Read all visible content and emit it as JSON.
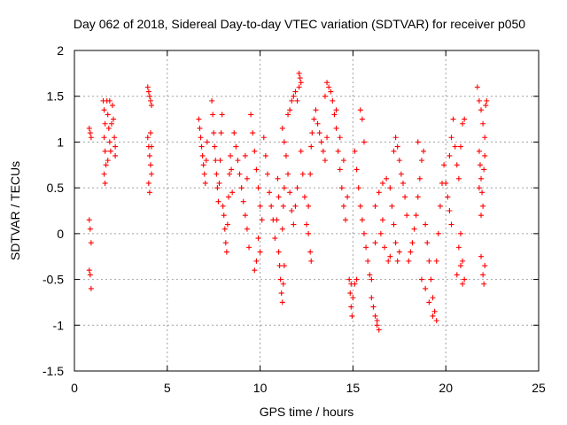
{
  "chart_data": {
    "type": "scatter",
    "title": "Day 062 of 2018, Sidereal Day-to-day VTEC variation (SDTVAR) for receiver p050",
    "xlabel": "GPS time / hours",
    "ylabel": "SDTVAR / TECUs",
    "xlim": [
      0,
      25
    ],
    "ylim": [
      -1.5,
      2
    ],
    "xticks": [
      "0",
      "5",
      "10",
      "15",
      "20",
      "25"
    ],
    "yticks": [
      "-1.5",
      "-1",
      "-0.5",
      "0",
      "0.5",
      "1",
      "1.5",
      "2"
    ],
    "grid": true,
    "marker": "+",
    "color": "#ff0000",
    "series": [
      {
        "name": "p050",
        "points": [
          [
            0.8,
            1.15
          ],
          [
            0.85,
            1.1
          ],
          [
            0.9,
            1.05
          ],
          [
            0.8,
            0.15
          ],
          [
            0.85,
            0.05
          ],
          [
            0.9,
            -0.1
          ],
          [
            0.8,
            -0.4
          ],
          [
            0.85,
            -0.45
          ],
          [
            0.9,
            -0.6
          ],
          [
            1.55,
            1.45
          ],
          [
            1.6,
            1.35
          ],
          [
            1.65,
            1.2
          ],
          [
            1.6,
            1.05
          ],
          [
            1.65,
            0.9
          ],
          [
            1.7,
            0.75
          ],
          [
            1.6,
            0.65
          ],
          [
            1.65,
            0.55
          ],
          [
            1.75,
            1.45
          ],
          [
            1.8,
            1.3
          ],
          [
            1.85,
            1.15
          ],
          [
            1.9,
            1.0
          ],
          [
            1.95,
            0.9
          ],
          [
            2.0,
            1.2
          ],
          [
            2.05,
            1.4
          ],
          [
            2.1,
            1.25
          ],
          [
            2.15,
            1.05
          ],
          [
            2.2,
            0.95
          ],
          [
            2.2,
            0.85
          ],
          [
            1.8,
            0.8
          ],
          [
            1.9,
            1.45
          ],
          [
            3.95,
            1.6
          ],
          [
            4.0,
            1.55
          ],
          [
            4.05,
            1.5
          ],
          [
            4.1,
            1.45
          ],
          [
            4.15,
            1.4
          ],
          [
            3.95,
            1.05
          ],
          [
            4.0,
            0.95
          ],
          [
            4.05,
            0.85
          ],
          [
            4.1,
            0.75
          ],
          [
            4.15,
            0.65
          ],
          [
            4.0,
            0.55
          ],
          [
            4.05,
            0.45
          ],
          [
            4.1,
            1.1
          ],
          [
            4.15,
            0.95
          ],
          [
            6.7,
            1.25
          ],
          [
            6.75,
            1.15
          ],
          [
            6.8,
            1.05
          ],
          [
            6.85,
            0.95
          ],
          [
            6.9,
            0.85
          ],
          [
            6.95,
            0.75
          ],
          [
            7.0,
            0.65
          ],
          [
            7.05,
            0.55
          ],
          [
            7.1,
            0.8
          ],
          [
            7.15,
            1.0
          ],
          [
            7.4,
            1.45
          ],
          [
            7.45,
            1.3
          ],
          [
            7.5,
            1.1
          ],
          [
            7.55,
            0.95
          ],
          [
            7.6,
            0.8
          ],
          [
            7.65,
            0.65
          ],
          [
            7.7,
            0.5
          ],
          [
            7.75,
            0.35
          ],
          [
            7.8,
            0.55
          ],
          [
            7.85,
            0.8
          ],
          [
            7.9,
            1.1
          ],
          [
            7.95,
            1.3
          ],
          [
            8.0,
            0.3
          ],
          [
            8.05,
            0.2
          ],
          [
            8.1,
            0.05
          ],
          [
            8.15,
            -0.1
          ],
          [
            8.2,
            -0.2
          ],
          [
            8.25,
            0.1
          ],
          [
            8.3,
            0.4
          ],
          [
            8.35,
            0.65
          ],
          [
            8.4,
            0.85
          ],
          [
            8.45,
            0.7
          ],
          [
            8.5,
            0.45
          ],
          [
            8.6,
            1.1
          ],
          [
            8.7,
            0.95
          ],
          [
            8.8,
            0.8
          ],
          [
            8.9,
            0.65
          ],
          [
            9.0,
            0.5
          ],
          [
            9.1,
            0.35
          ],
          [
            9.2,
            0.2
          ],
          [
            9.3,
            0.05
          ],
          [
            9.4,
            -0.15
          ],
          [
            9.3,
            0.6
          ],
          [
            9.2,
            0.85
          ],
          [
            9.5,
            1.3
          ],
          [
            9.6,
            1.1
          ],
          [
            9.7,
            0.9
          ],
          [
            9.8,
            0.7
          ],
          [
            9.9,
            0.5
          ],
          [
            10.0,
            0.3
          ],
          [
            10.1,
            0.15
          ],
          [
            9.9,
            -0.05
          ],
          [
            10.0,
            -0.2
          ],
          [
            9.8,
            -0.3
          ],
          [
            9.7,
            -0.4
          ],
          [
            10.2,
            1.05
          ],
          [
            10.3,
            0.85
          ],
          [
            10.4,
            0.65
          ],
          [
            10.5,
            0.45
          ],
          [
            10.6,
            0.3
          ],
          [
            10.7,
            0.15
          ],
          [
            10.8,
            -0.05
          ],
          [
            10.9,
            0.15
          ],
          [
            11.0,
            0.4
          ],
          [
            10.95,
            0.6
          ],
          [
            11.0,
            -0.2
          ],
          [
            11.05,
            -0.35
          ],
          [
            11.1,
            -0.5
          ],
          [
            11.15,
            -0.65
          ],
          [
            11.2,
            -0.75
          ],
          [
            11.25,
            -0.55
          ],
          [
            11.3,
            -0.35
          ],
          [
            11.2,
            0.05
          ],
          [
            11.25,
            0.3
          ],
          [
            11.3,
            0.5
          ],
          [
            11.2,
            1.15
          ],
          [
            11.3,
            1.0
          ],
          [
            11.4,
            0.85
          ],
          [
            11.5,
            0.65
          ],
          [
            11.6,
            0.45
          ],
          [
            11.7,
            0.25
          ],
          [
            11.8,
            0.1
          ],
          [
            11.9,
            0.3
          ],
          [
            12.0,
            0.5
          ],
          [
            11.6,
            1.35
          ],
          [
            11.7,
            1.45
          ],
          [
            11.8,
            1.5
          ],
          [
            11.9,
            1.55
          ],
          [
            12.0,
            1.45
          ],
          [
            12.1,
            1.6
          ],
          [
            11.5,
            1.3
          ],
          [
            12.2,
            0.9
          ],
          [
            12.3,
            0.65
          ],
          [
            12.4,
            0.4
          ],
          [
            12.5,
            0.1
          ],
          [
            12.6,
            0.0
          ],
          [
            12.7,
            -0.2
          ],
          [
            12.75,
            -0.3
          ],
          [
            12.6,
            0.3
          ],
          [
            12.7,
            0.65
          ],
          [
            12.75,
            0.95
          ],
          [
            12.1,
            1.75
          ],
          [
            12.15,
            1.7
          ],
          [
            12.2,
            1.65
          ],
          [
            12.8,
            1.1
          ],
          [
            12.9,
            1.25
          ],
          [
            13.0,
            1.35
          ],
          [
            13.1,
            1.2
          ],
          [
            13.2,
            1.1
          ],
          [
            13.3,
            1.0
          ],
          [
            13.4,
            0.9
          ],
          [
            13.5,
            0.8
          ],
          [
            13.6,
            1.05
          ],
          [
            13.5,
            1.5
          ],
          [
            13.6,
            1.65
          ],
          [
            13.7,
            1.6
          ],
          [
            13.8,
            1.55
          ],
          [
            13.9,
            1.45
          ],
          [
            14.0,
            1.3
          ],
          [
            14.1,
            1.15
          ],
          [
            14.2,
            0.9
          ],
          [
            14.3,
            0.7
          ],
          [
            14.4,
            0.5
          ],
          [
            14.5,
            0.3
          ],
          [
            14.6,
            0.15
          ],
          [
            14.7,
            0.4
          ],
          [
            14.5,
            0.8
          ],
          [
            14.3,
            1.05
          ],
          [
            14.1,
            1.35
          ],
          [
            14.8,
            -0.5
          ],
          [
            14.85,
            -0.65
          ],
          [
            14.9,
            -0.8
          ],
          [
            14.95,
            -0.9
          ],
          [
            15.0,
            -0.7
          ],
          [
            15.1,
            -0.55
          ],
          [
            15.2,
            -0.5
          ],
          [
            14.9,
            -0.55
          ],
          [
            15.1,
            0.9
          ],
          [
            15.2,
            0.7
          ],
          [
            15.3,
            0.5
          ],
          [
            15.4,
            0.3
          ],
          [
            15.5,
            0.15
          ],
          [
            15.6,
            0.0
          ],
          [
            15.7,
            -0.15
          ],
          [
            15.8,
            -0.3
          ],
          [
            15.9,
            -0.45
          ],
          [
            15.6,
            1.0
          ],
          [
            15.5,
            1.25
          ],
          [
            15.4,
            1.35
          ],
          [
            16.0,
            -0.7
          ],
          [
            16.1,
            -0.8
          ],
          [
            16.2,
            -0.9
          ],
          [
            16.3,
            -1.0
          ],
          [
            16.4,
            -1.05
          ],
          [
            16.3,
            -0.95
          ],
          [
            16.0,
            -0.5
          ],
          [
            16.2,
            0.3
          ],
          [
            16.4,
            0.45
          ],
          [
            16.6,
            0.55
          ],
          [
            16.8,
            0.6
          ],
          [
            17.0,
            0.5
          ],
          [
            17.1,
            0.3
          ],
          [
            17.2,
            0.1
          ],
          [
            17.3,
            -0.1
          ],
          [
            17.4,
            -0.3
          ],
          [
            17.5,
            -0.2
          ],
          [
            16.5,
            0.0
          ],
          [
            16.7,
            -0.15
          ],
          [
            16.9,
            -0.3
          ],
          [
            17.0,
            -0.25
          ],
          [
            16.6,
            0.15
          ],
          [
            16.2,
            -0.1
          ],
          [
            17.2,
            0.9
          ],
          [
            17.3,
            1.05
          ],
          [
            17.4,
            0.95
          ],
          [
            17.5,
            0.8
          ],
          [
            17.6,
            0.65
          ],
          [
            17.7,
            0.55
          ],
          [
            17.8,
            0.4
          ],
          [
            17.9,
            0.2
          ],
          [
            18.0,
            -0.3
          ],
          [
            18.1,
            -0.2
          ],
          [
            18.2,
            -0.1
          ],
          [
            18.3,
            0.05
          ],
          [
            18.4,
            0.2
          ],
          [
            18.5,
            0.4
          ],
          [
            18.6,
            0.6
          ],
          [
            18.7,
            0.8
          ],
          [
            18.8,
            0.9
          ],
          [
            18.5,
            1.0
          ],
          [
            18.9,
            0.1
          ],
          [
            19.0,
            -0.1
          ],
          [
            19.1,
            -0.3
          ],
          [
            19.2,
            -0.5
          ],
          [
            19.3,
            -0.7
          ],
          [
            19.4,
            -0.85
          ],
          [
            19.5,
            -0.95
          ],
          [
            19.3,
            -0.9
          ],
          [
            19.1,
            -0.75
          ],
          [
            18.9,
            -0.6
          ],
          [
            18.7,
            -0.5
          ],
          [
            19.5,
            -0.3
          ],
          [
            19.6,
            0.0
          ],
          [
            19.7,
            0.3
          ],
          [
            19.8,
            0.55
          ],
          [
            19.9,
            0.75
          ],
          [
            20.0,
            0.55
          ],
          [
            20.1,
            0.4
          ],
          [
            20.2,
            0.25
          ],
          [
            20.3,
            0.1
          ],
          [
            20.2,
            0.85
          ],
          [
            20.3,
            1.05
          ],
          [
            20.4,
            1.25
          ],
          [
            20.5,
            0.95
          ],
          [
            20.6,
            0.75
          ],
          [
            20.7,
            -0.15
          ],
          [
            20.8,
            -0.35
          ],
          [
            20.9,
            -0.55
          ],
          [
            21.0,
            -0.5
          ],
          [
            20.9,
            -0.3
          ],
          [
            20.8,
            0.0
          ],
          [
            20.6,
            -0.45
          ],
          [
            20.7,
            0.6
          ],
          [
            20.8,
            0.95
          ],
          [
            20.9,
            1.2
          ],
          [
            21.0,
            1.25
          ],
          [
            21.8,
            0.9
          ],
          [
            21.85,
            0.75
          ],
          [
            21.9,
            0.6
          ],
          [
            21.95,
            0.45
          ],
          [
            22.0,
            0.3
          ],
          [
            21.9,
            0.2
          ],
          [
            21.8,
            0.5
          ],
          [
            22.05,
            0.7
          ],
          [
            22.1,
            0.85
          ],
          [
            21.7,
            1.6
          ],
          [
            21.8,
            1.45
          ],
          [
            21.9,
            1.35
          ],
          [
            22.0,
            1.2
          ],
          [
            22.1,
            1.05
          ],
          [
            22.15,
            1.4
          ],
          [
            22.2,
            1.45
          ],
          [
            21.9,
            -0.25
          ],
          [
            22.0,
            -0.45
          ],
          [
            22.1,
            -0.35
          ],
          [
            22.05,
            -0.55
          ]
        ]
      }
    ]
  }
}
